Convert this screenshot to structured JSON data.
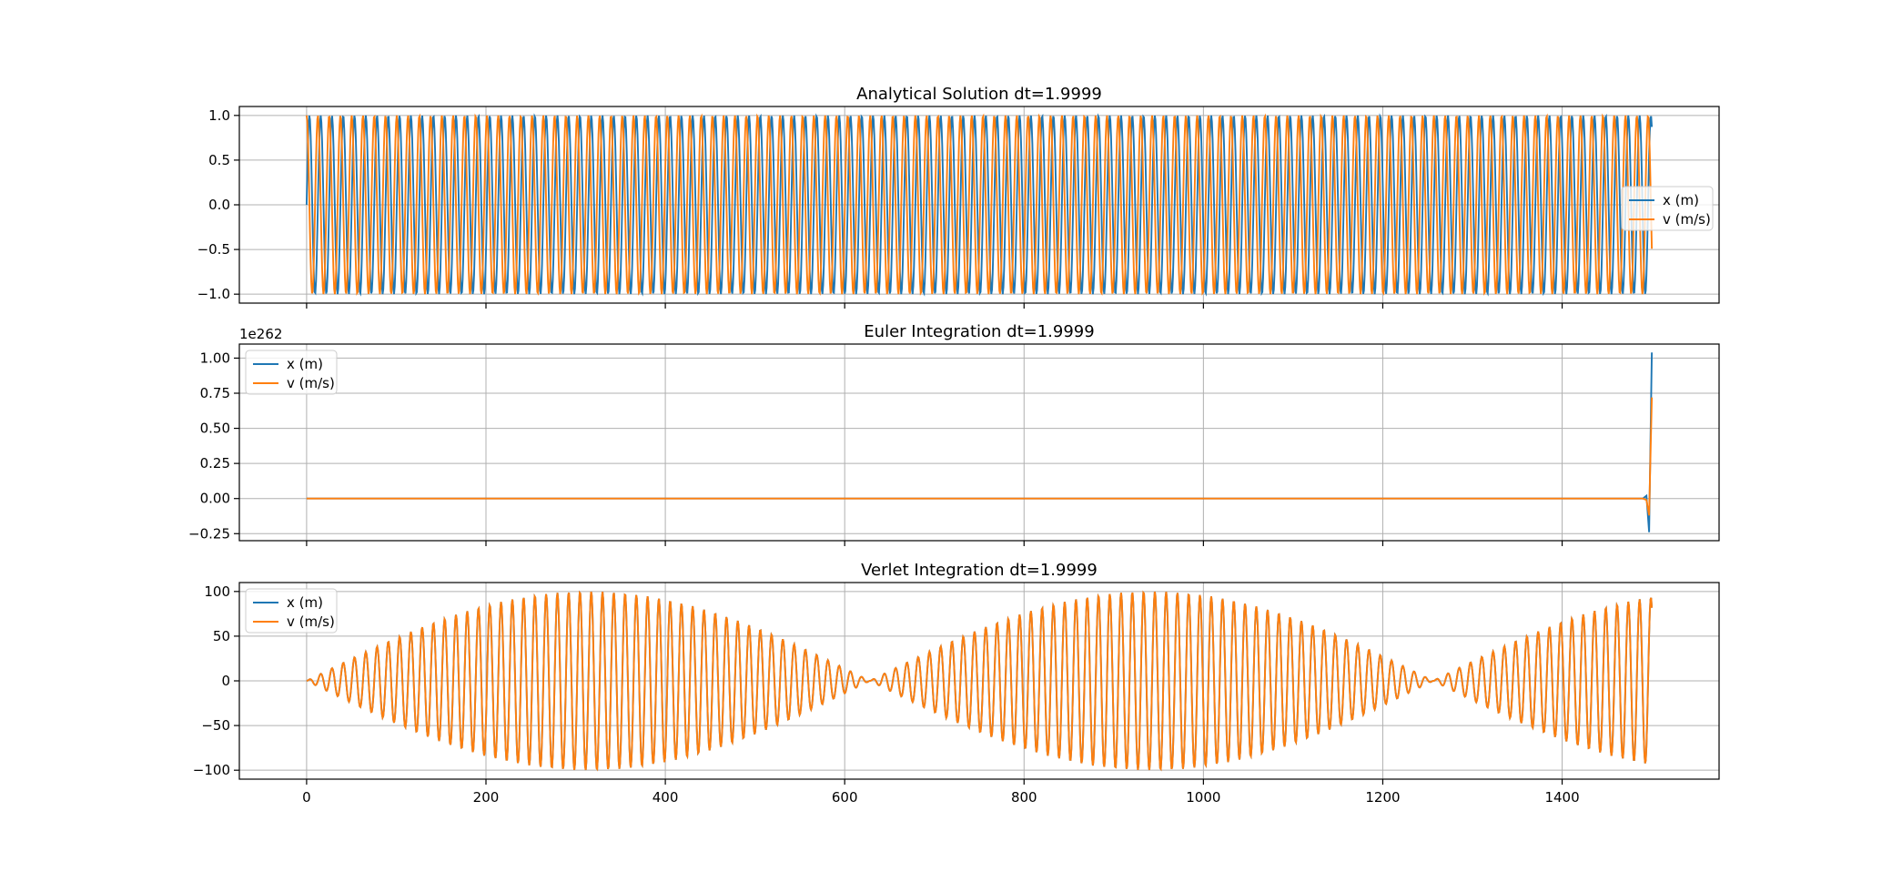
{
  "figure": {
    "background": "#ffffff"
  },
  "colors": {
    "x": "#1f77b4",
    "v": "#ff7f0e",
    "grid": "#b0b0b0",
    "frame": "#000000"
  },
  "chart_data": [
    {
      "type": "line",
      "title": "Analytical Solution dt=1.9999",
      "xlim": [
        -75,
        1575
      ],
      "ylim": [
        -1.1,
        1.1
      ],
      "yticks": [
        -1.0,
        -0.5,
        0.0,
        0.5,
        1.0
      ],
      "ytick_labels": [
        "−1.0",
        "−0.5",
        "0.0",
        "0.5",
        "1.0"
      ],
      "y_offset_label": "",
      "grid": true,
      "legend": {
        "position": "center-right",
        "entries": [
          "x (m)",
          "v (m/s)"
        ]
      },
      "series": [
        {
          "name": "x (m)",
          "shape": "sin",
          "period": 12.57,
          "amp": 1,
          "start": 0,
          "end": 1500
        },
        {
          "name": "v (m/s)",
          "shape": "cos",
          "period": 12.57,
          "amp": 1,
          "start": 0,
          "end": 1500
        }
      ]
    },
    {
      "type": "line",
      "title": "Euler Integration dt=1.9999",
      "xlim": [
        -75,
        1575
      ],
      "ylim": [
        -0.3,
        1.1
      ],
      "yticks": [
        -0.25,
        0.0,
        0.25,
        0.5,
        0.75,
        1.0
      ],
      "ytick_labels": [
        "−0.25",
        "0.00",
        "0.25",
        "0.50",
        "0.75",
        "1.00"
      ],
      "y_offset_label": "1e262",
      "grid": true,
      "legend": {
        "position": "upper-left",
        "entries": [
          "x (m)",
          "v (m/s)"
        ]
      },
      "series": [
        {
          "name": "x (m)",
          "points": [
            [
              0,
              0
            ],
            [
              1490,
              0
            ],
            [
              1494,
              0.02
            ],
            [
              1497,
              -0.24
            ],
            [
              1500,
              1.04
            ]
          ]
        },
        {
          "name": "v (m/s)",
          "points": [
            [
              0,
              0
            ],
            [
              1490,
              0
            ],
            [
              1494,
              -0.01
            ],
            [
              1497,
              -0.12
            ],
            [
              1500,
              0.72
            ]
          ]
        }
      ]
    },
    {
      "type": "line",
      "title": "Verlet Integration dt=1.9999",
      "xlim": [
        -75,
        1575
      ],
      "ylim": [
        -110,
        110
      ],
      "yticks": [
        -100,
        -50,
        0,
        50,
        100
      ],
      "ytick_labels": [
        "−100",
        "−50",
        "0",
        "50",
        "100"
      ],
      "y_offset_label": "",
      "grid": true,
      "legend": {
        "position": "upper-left",
        "entries": [
          "x (m)",
          "v (m/s)"
        ]
      },
      "series": [
        {
          "name": "x (m)",
          "shape": "beat",
          "period": 12.57,
          "amp": 100,
          "envelope_period": 628,
          "start": 0,
          "end": 1500
        },
        {
          "name": "v (m/s)",
          "shape": "beat",
          "period": 12.57,
          "amp": 100,
          "envelope_period": 628,
          "start": 0,
          "end": 1500
        }
      ]
    }
  ],
  "xaxis": {
    "ticks": [
      0,
      200,
      400,
      600,
      800,
      1000,
      1200,
      1400
    ],
    "tick_labels": [
      "0",
      "200",
      "400",
      "600",
      "800",
      "1000",
      "1200",
      "1400"
    ]
  }
}
